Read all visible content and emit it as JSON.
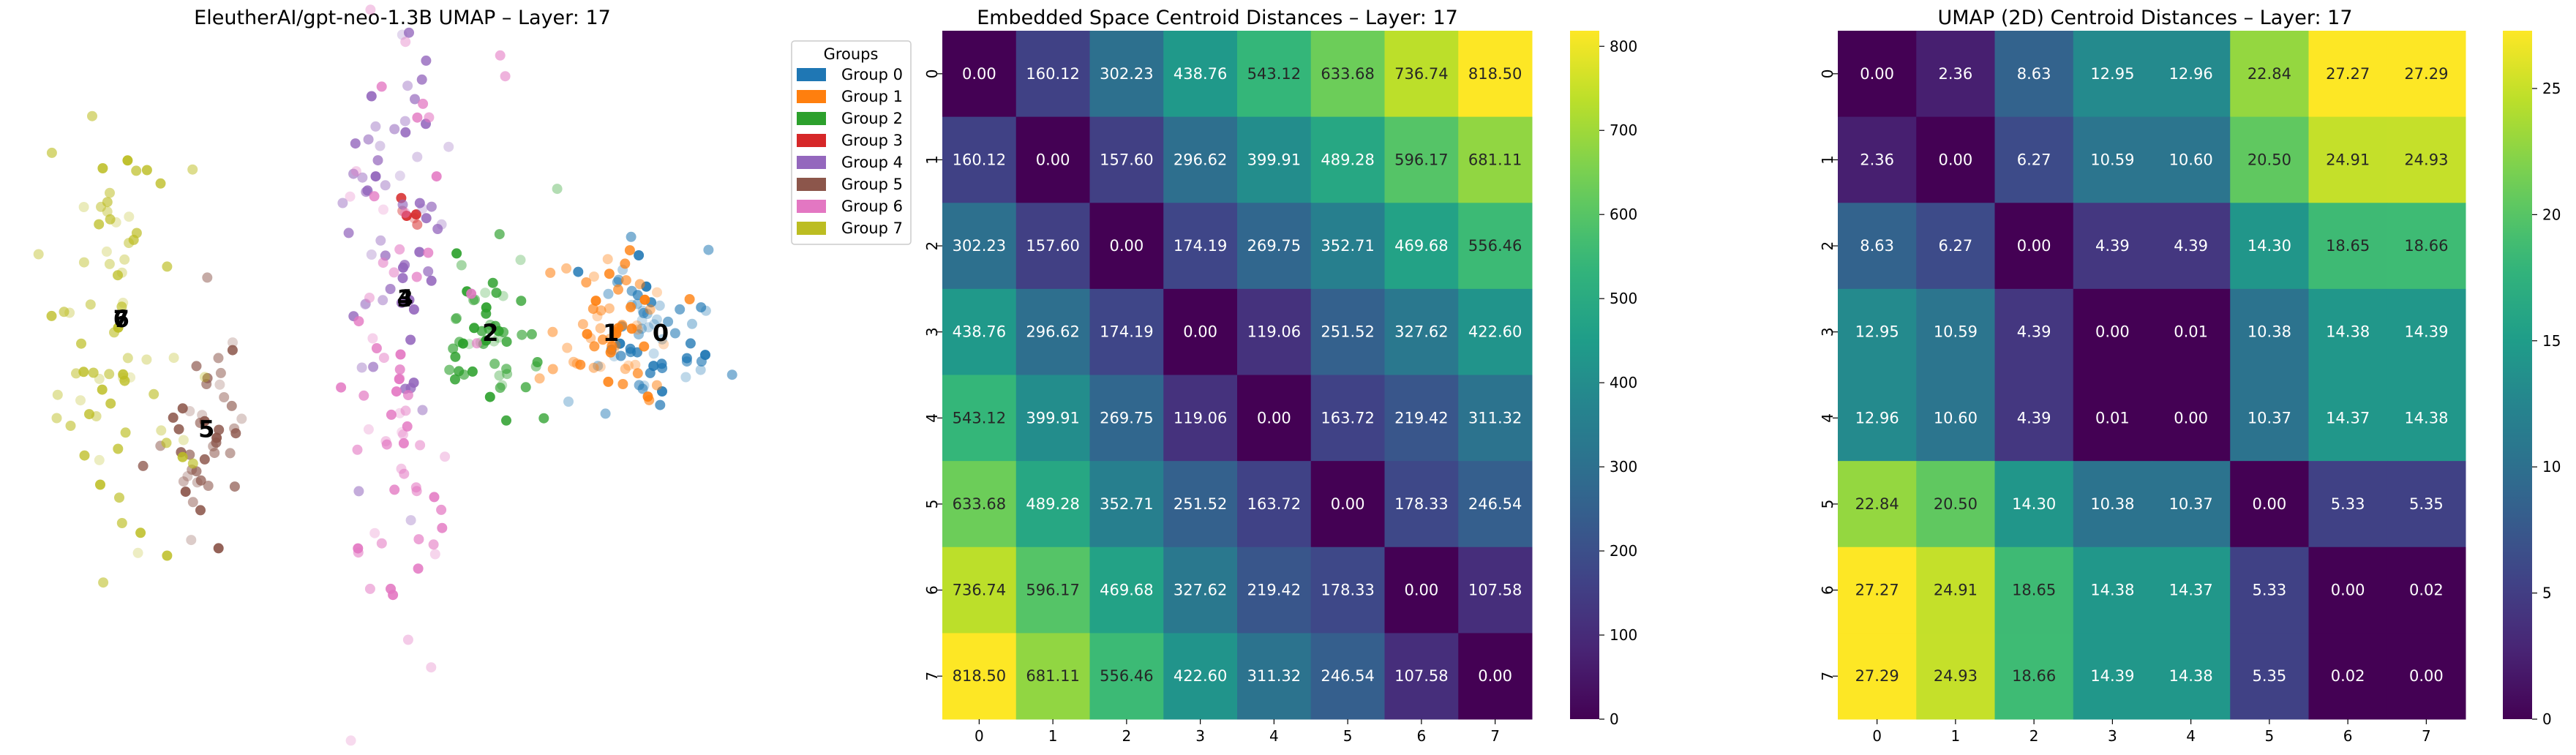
{
  "chart_data": [
    {
      "type": "scatter",
      "title": "EleutherAI/gpt-neo-1.3B UMAP – Layer: 17",
      "legend": {
        "title": "Groups",
        "placement": "outside-right",
        "entries": [
          {
            "name": "Group 0",
            "color": "#1f77b4"
          },
          {
            "name": "Group 1",
            "color": "#ff7f0e"
          },
          {
            "name": "Group 2",
            "color": "#2ca02c"
          },
          {
            "name": "Group 3",
            "color": "#d62728"
          },
          {
            "name": "Group 4",
            "color": "#9467bd"
          },
          {
            "name": "Group 5",
            "color": "#8c564b"
          },
          {
            "name": "Group 6",
            "color": "#e377c2"
          },
          {
            "name": "Group 7",
            "color": "#bcbd22"
          }
        ]
      },
      "axes_visible": false,
      "xlim": [
        0,
        10
      ],
      "ylim": [
        0,
        10
      ],
      "centroids": [
        {
          "label": "0",
          "x": 9.0,
          "y": 5.8
        },
        {
          "label": "1",
          "x": 8.3,
          "y": 5.8
        },
        {
          "label": "2",
          "x": 6.6,
          "y": 5.8
        },
        {
          "label": "3",
          "x": 5.4,
          "y": 6.3
        },
        {
          "label": "4",
          "x": 5.4,
          "y": 6.3
        },
        {
          "label": "5",
          "x": 2.6,
          "y": 4.4
        },
        {
          "label": "6",
          "x": 1.4,
          "y": 6.0
        },
        {
          "label": "7",
          "x": 1.4,
          "y": 6.0
        }
      ],
      "clusters": [
        {
          "group": 0,
          "color": "#1f77b4",
          "cx": 8.8,
          "cy": 5.9,
          "sx": 0.4,
          "sy": 0.55,
          "n": 60
        },
        {
          "group": 1,
          "color": "#ff7f0e",
          "cx": 8.3,
          "cy": 5.7,
          "sx": 0.4,
          "sy": 0.55,
          "n": 60
        },
        {
          "group": 2,
          "color": "#2ca02c",
          "cx": 6.6,
          "cy": 5.8,
          "sx": 0.35,
          "sy": 0.6,
          "n": 55
        },
        {
          "group": 3,
          "color": "#d62728",
          "cx": 5.5,
          "cy": 7.6,
          "sx": 0.2,
          "sy": 0.15,
          "n": 6
        },
        {
          "group": 4,
          "color": "#9467bd",
          "cx": 5.3,
          "cy": 7.5,
          "sx": 0.35,
          "sy": 1.6,
          "n": 60
        },
        {
          "group": 5,
          "color": "#8c564b",
          "cx": 2.6,
          "cy": 4.3,
          "sx": 0.35,
          "sy": 0.8,
          "n": 45
        },
        {
          "group": 6,
          "color": "#e377c2",
          "cx": 5.4,
          "cy": 4.8,
          "sx": 0.5,
          "sy": 2.8,
          "n": 70
        },
        {
          "group": 7,
          "color": "#bcbd22",
          "cx": 1.3,
          "cy": 5.9,
          "sx": 0.5,
          "sy": 1.7,
          "n": 75
        }
      ]
    },
    {
      "type": "heatmap",
      "title": "Embedded Space Centroid Distances – Layer: 17",
      "xlabel": "",
      "ylabel": "",
      "x_tick_labels": [
        "0",
        "1",
        "2",
        "3",
        "4",
        "5",
        "6",
        "7"
      ],
      "y_tick_labels": [
        "0",
        "1",
        "2",
        "3",
        "4",
        "5",
        "6",
        "7"
      ],
      "colormap": "viridis",
      "vmin": 0,
      "vmax": 818.5,
      "colorbar_ticks": [
        "0",
        "100",
        "200",
        "300",
        "400",
        "500",
        "600",
        "700",
        "800"
      ],
      "colorbar_values": [
        0,
        100,
        200,
        300,
        400,
        500,
        600,
        700,
        800
      ],
      "values": [
        [
          0.0,
          160.12,
          302.23,
          438.76,
          543.12,
          633.68,
          736.74,
          818.5
        ],
        [
          160.12,
          0.0,
          157.6,
          296.62,
          399.91,
          489.28,
          596.17,
          681.11
        ],
        [
          302.23,
          157.6,
          0.0,
          174.19,
          269.75,
          352.71,
          469.68,
          556.46
        ],
        [
          438.76,
          296.62,
          174.19,
          0.0,
          119.06,
          251.52,
          327.62,
          422.6
        ],
        [
          543.12,
          399.91,
          269.75,
          119.06,
          0.0,
          163.72,
          219.42,
          311.32
        ],
        [
          633.68,
          489.28,
          352.71,
          251.52,
          163.72,
          0.0,
          178.33,
          246.54
        ],
        [
          736.74,
          596.17,
          469.68,
          327.62,
          219.42,
          178.33,
          0.0,
          107.58
        ],
        [
          818.5,
          681.11,
          556.46,
          422.6,
          311.32,
          246.54,
          107.58,
          0.0
        ]
      ]
    },
    {
      "type": "heatmap",
      "title": "UMAP (2D) Centroid Distances – Layer: 17",
      "xlabel": "",
      "ylabel": "",
      "x_tick_labels": [
        "0",
        "1",
        "2",
        "3",
        "4",
        "5",
        "6",
        "7"
      ],
      "y_tick_labels": [
        "0",
        "1",
        "2",
        "3",
        "4",
        "5",
        "6",
        "7"
      ],
      "colormap": "viridis",
      "vmin": 0,
      "vmax": 27.29,
      "colorbar_ticks": [
        "0",
        "5",
        "10",
        "15",
        "20",
        "25"
      ],
      "colorbar_values": [
        0,
        5,
        10,
        15,
        20,
        25
      ],
      "values": [
        [
          0.0,
          2.36,
          8.63,
          12.95,
          12.96,
          22.84,
          27.27,
          27.29
        ],
        [
          2.36,
          0.0,
          6.27,
          10.59,
          10.6,
          20.5,
          24.91,
          24.93
        ],
        [
          8.63,
          6.27,
          0.0,
          4.39,
          4.39,
          14.3,
          18.65,
          18.66
        ],
        [
          12.95,
          10.59,
          4.39,
          0.0,
          0.01,
          10.38,
          14.38,
          14.39
        ],
        [
          12.96,
          10.6,
          4.39,
          0.01,
          0.0,
          10.37,
          14.37,
          14.38
        ],
        [
          22.84,
          20.5,
          14.3,
          10.38,
          10.37,
          0.0,
          5.33,
          5.35
        ],
        [
          27.27,
          24.91,
          18.65,
          14.38,
          14.37,
          5.33,
          0.0,
          0.02
        ],
        [
          27.29,
          24.93,
          18.66,
          14.39,
          14.38,
          5.35,
          0.02,
          0.0
        ]
      ]
    }
  ]
}
